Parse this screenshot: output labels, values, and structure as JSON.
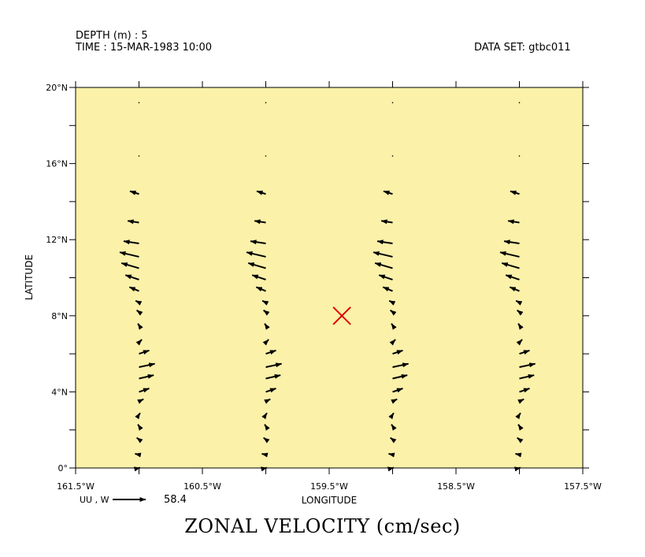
{
  "header": {
    "depth_label": "DEPTH (m) : 5",
    "time_label": "TIME : 15-MAR-1983 10:00",
    "dataset_label": "DATA SET: gtbc011"
  },
  "plot_title": "ZONAL VELOCITY (cm/sec)",
  "colors": {
    "background_fill": "#fbf1a9",
    "arrow": "#000000",
    "marker": "#e00000"
  },
  "marker": {
    "name": "red-x-marker",
    "lon": -159.4,
    "lat": 8.0
  },
  "chart_data": {
    "type": "vector_field",
    "xlabel": "LONGITUDE",
    "ylabel": "LATITUDE",
    "xlim": [
      -161.5,
      -157.5
    ],
    "ylim": [
      0,
      20
    ],
    "x_tick_labels": [
      {
        "value": -161.5,
        "label": "161.5°W"
      },
      {
        "value": -160.5,
        "label": "160.5°W"
      },
      {
        "value": -159.5,
        "label": "159.5°W"
      },
      {
        "value": -158.5,
        "label": "158.5°W"
      },
      {
        "value": -157.5,
        "label": "157.5°W"
      }
    ],
    "y_tick_labels": [
      {
        "value": 0,
        "label": "0°"
      },
      {
        "value": 4,
        "label": "4°N"
      },
      {
        "value": 8,
        "label": "8°N"
      },
      {
        "value": 12,
        "label": "12°N"
      },
      {
        "value": 16,
        "label": "16°N"
      },
      {
        "value": 20,
        "label": "20°N"
      }
    ],
    "reference_vector": {
      "label": "UU , W",
      "value": "58.4"
    },
    "columns_lon": [
      -161.0,
      -160.0,
      -159.0,
      -158.0
    ],
    "vectors_per_column": [
      {
        "lat": 0.0,
        "u": 2.0,
        "v": 0.5
      },
      {
        "lat": 0.7,
        "u": -7.0,
        "v": 1.5
      },
      {
        "lat": 1.5,
        "u": -4.0,
        "v": 3.0
      },
      {
        "lat": 2.2,
        "u": -2.0,
        "v": 3.0
      },
      {
        "lat": 2.8,
        "u": 2.0,
        "v": 3.0
      },
      {
        "lat": 3.5,
        "u": 8.0,
        "v": 4.0
      },
      {
        "lat": 4.0,
        "u": 18.0,
        "v": 6.0
      },
      {
        "lat": 4.7,
        "u": 26.0,
        "v": 6.0
      },
      {
        "lat": 5.3,
        "u": 28.0,
        "v": 6.0
      },
      {
        "lat": 6.0,
        "u": 18.0,
        "v": 6.0
      },
      {
        "lat": 6.6,
        "u": 5.0,
        "v": 5.0
      },
      {
        "lat": 7.5,
        "u": -2.0,
        "v": 3.0
      },
      {
        "lat": 8.2,
        "u": -4.0,
        "v": 3.0
      },
      {
        "lat": 8.7,
        "u": -6.0,
        "v": 3.0
      },
      {
        "lat": 9.3,
        "u": -17.0,
        "v": 7.0
      },
      {
        "lat": 9.9,
        "u": -24.0,
        "v": 8.0
      },
      {
        "lat": 10.5,
        "u": -31.0,
        "v": 9.0
      },
      {
        "lat": 11.1,
        "u": -34.0,
        "v": 8.0
      },
      {
        "lat": 11.8,
        "u": -27.0,
        "v": 4.0
      },
      {
        "lat": 12.9,
        "u": -20.0,
        "v": 3.0
      },
      {
        "lat": 14.4,
        "u": -16.0,
        "v": 5.0
      },
      {
        "lat": 16.4,
        "u": 0.0,
        "v": 0.0
      },
      {
        "lat": 19.2,
        "u": 0.0,
        "v": 0.0
      }
    ]
  }
}
